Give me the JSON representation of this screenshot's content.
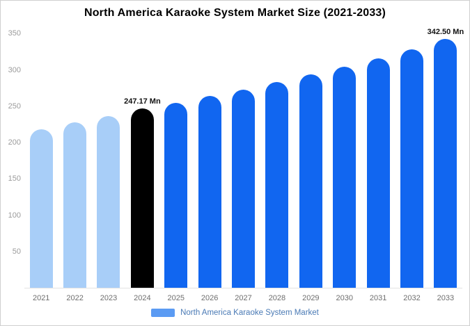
{
  "title": "North America Karaoke System Market Size (2021-2033)",
  "legend": {
    "label": "North America Karaoke System Market",
    "swatch_color": "#5b9bf3"
  },
  "colors": {
    "light_bar": "#a8cef8",
    "blue_bar": "#1166f0",
    "highlight_bar": "#000000",
    "y_axis_text": "#9b9b9b",
    "x_axis_text": "#6e6e6e",
    "data_label_text": "#111111"
  },
  "chart_data": {
    "type": "bar",
    "title": "North America Karaoke System Market Size (2021-2033)",
    "xlabel": "",
    "ylabel": "",
    "unit": "Mn",
    "categories": [
      "2021",
      "2022",
      "2023",
      "2024",
      "2025",
      "2026",
      "2027",
      "2028",
      "2029",
      "2030",
      "2031",
      "2032",
      "2033"
    ],
    "values": [
      218.3,
      227.4,
      236.5,
      247.17,
      254.6,
      263.8,
      273.2,
      283.1,
      293.6,
      304.4,
      316.2,
      328.6,
      342.5
    ],
    "bar_colors": [
      "#a8cef8",
      "#a8cef8",
      "#a8cef8",
      "#000000",
      "#1166f0",
      "#1166f0",
      "#1166f0",
      "#1166f0",
      "#1166f0",
      "#1166f0",
      "#1166f0",
      "#1166f0",
      "#1166f0"
    ],
    "ylim": [
      0,
      350
    ],
    "yticks": [
      50,
      100,
      150,
      200,
      250,
      300,
      350
    ],
    "grid": false,
    "legend_position": "bottom",
    "annotations": [
      {
        "category": "2024",
        "label": "247.17 Mn"
      },
      {
        "category": "2033",
        "label": "342.50 Mn"
      }
    ]
  }
}
